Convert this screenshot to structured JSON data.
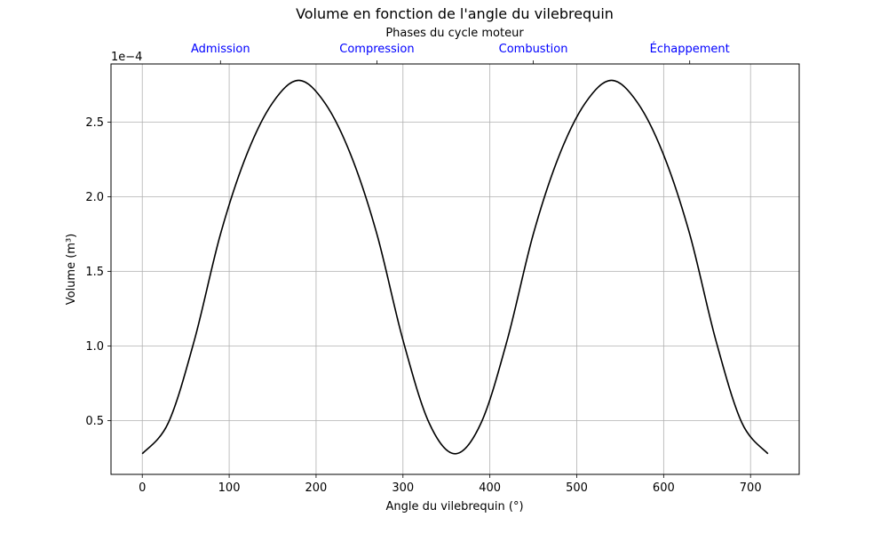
{
  "chart_data": {
    "type": "line",
    "title": "Volume en fonction de l'angle du vilebrequin",
    "xlabel": "Angle du vilebrequin (°)",
    "ylabel": "Volume (m³)",
    "y_offset_label": "1e−4",
    "xlim": [
      -36,
      756
    ],
    "ylim": [
      1.4e-05,
      0.000289
    ],
    "grid": true,
    "x_ticks": [
      0,
      100,
      200,
      300,
      400,
      500,
      600,
      700
    ],
    "x_tick_labels": [
      "0",
      "100",
      "200",
      "300",
      "400",
      "500",
      "600",
      "700"
    ],
    "y_ticks": [
      5e-05,
      0.0001,
      0.00015,
      0.0002,
      0.00025
    ],
    "y_tick_labels": [
      "0.5",
      "1.0",
      "1.5",
      "2.0",
      "2.5"
    ],
    "top_axis": {
      "label": "Phases du cycle moteur",
      "ticks": [
        90,
        270,
        450,
        630
      ],
      "tick_labels": [
        "Admission",
        "Compression",
        "Combustion",
        "Échappement"
      ],
      "color": "#0000ff"
    },
    "series": [
      {
        "color": "#000000",
        "x": [
          0,
          30,
          60,
          90,
          120,
          150,
          180,
          210,
          240,
          270,
          300,
          330,
          360,
          390,
          420,
          450,
          480,
          510,
          540,
          570,
          600,
          630,
          660,
          690,
          720
        ],
        "y": [
          2.78e-05,
          4.86e-05,
          0.000104,
          0.000175,
          0.000228,
          0.000263,
          0.000278,
          0.000263,
          0.000228,
          0.000175,
          0.000104,
          4.86e-05,
          2.78e-05,
          4.86e-05,
          0.000104,
          0.000175,
          0.000228,
          0.000263,
          0.000278,
          0.000263,
          0.000228,
          0.000175,
          0.000104,
          4.86e-05,
          2.78e-05
        ]
      }
    ]
  }
}
